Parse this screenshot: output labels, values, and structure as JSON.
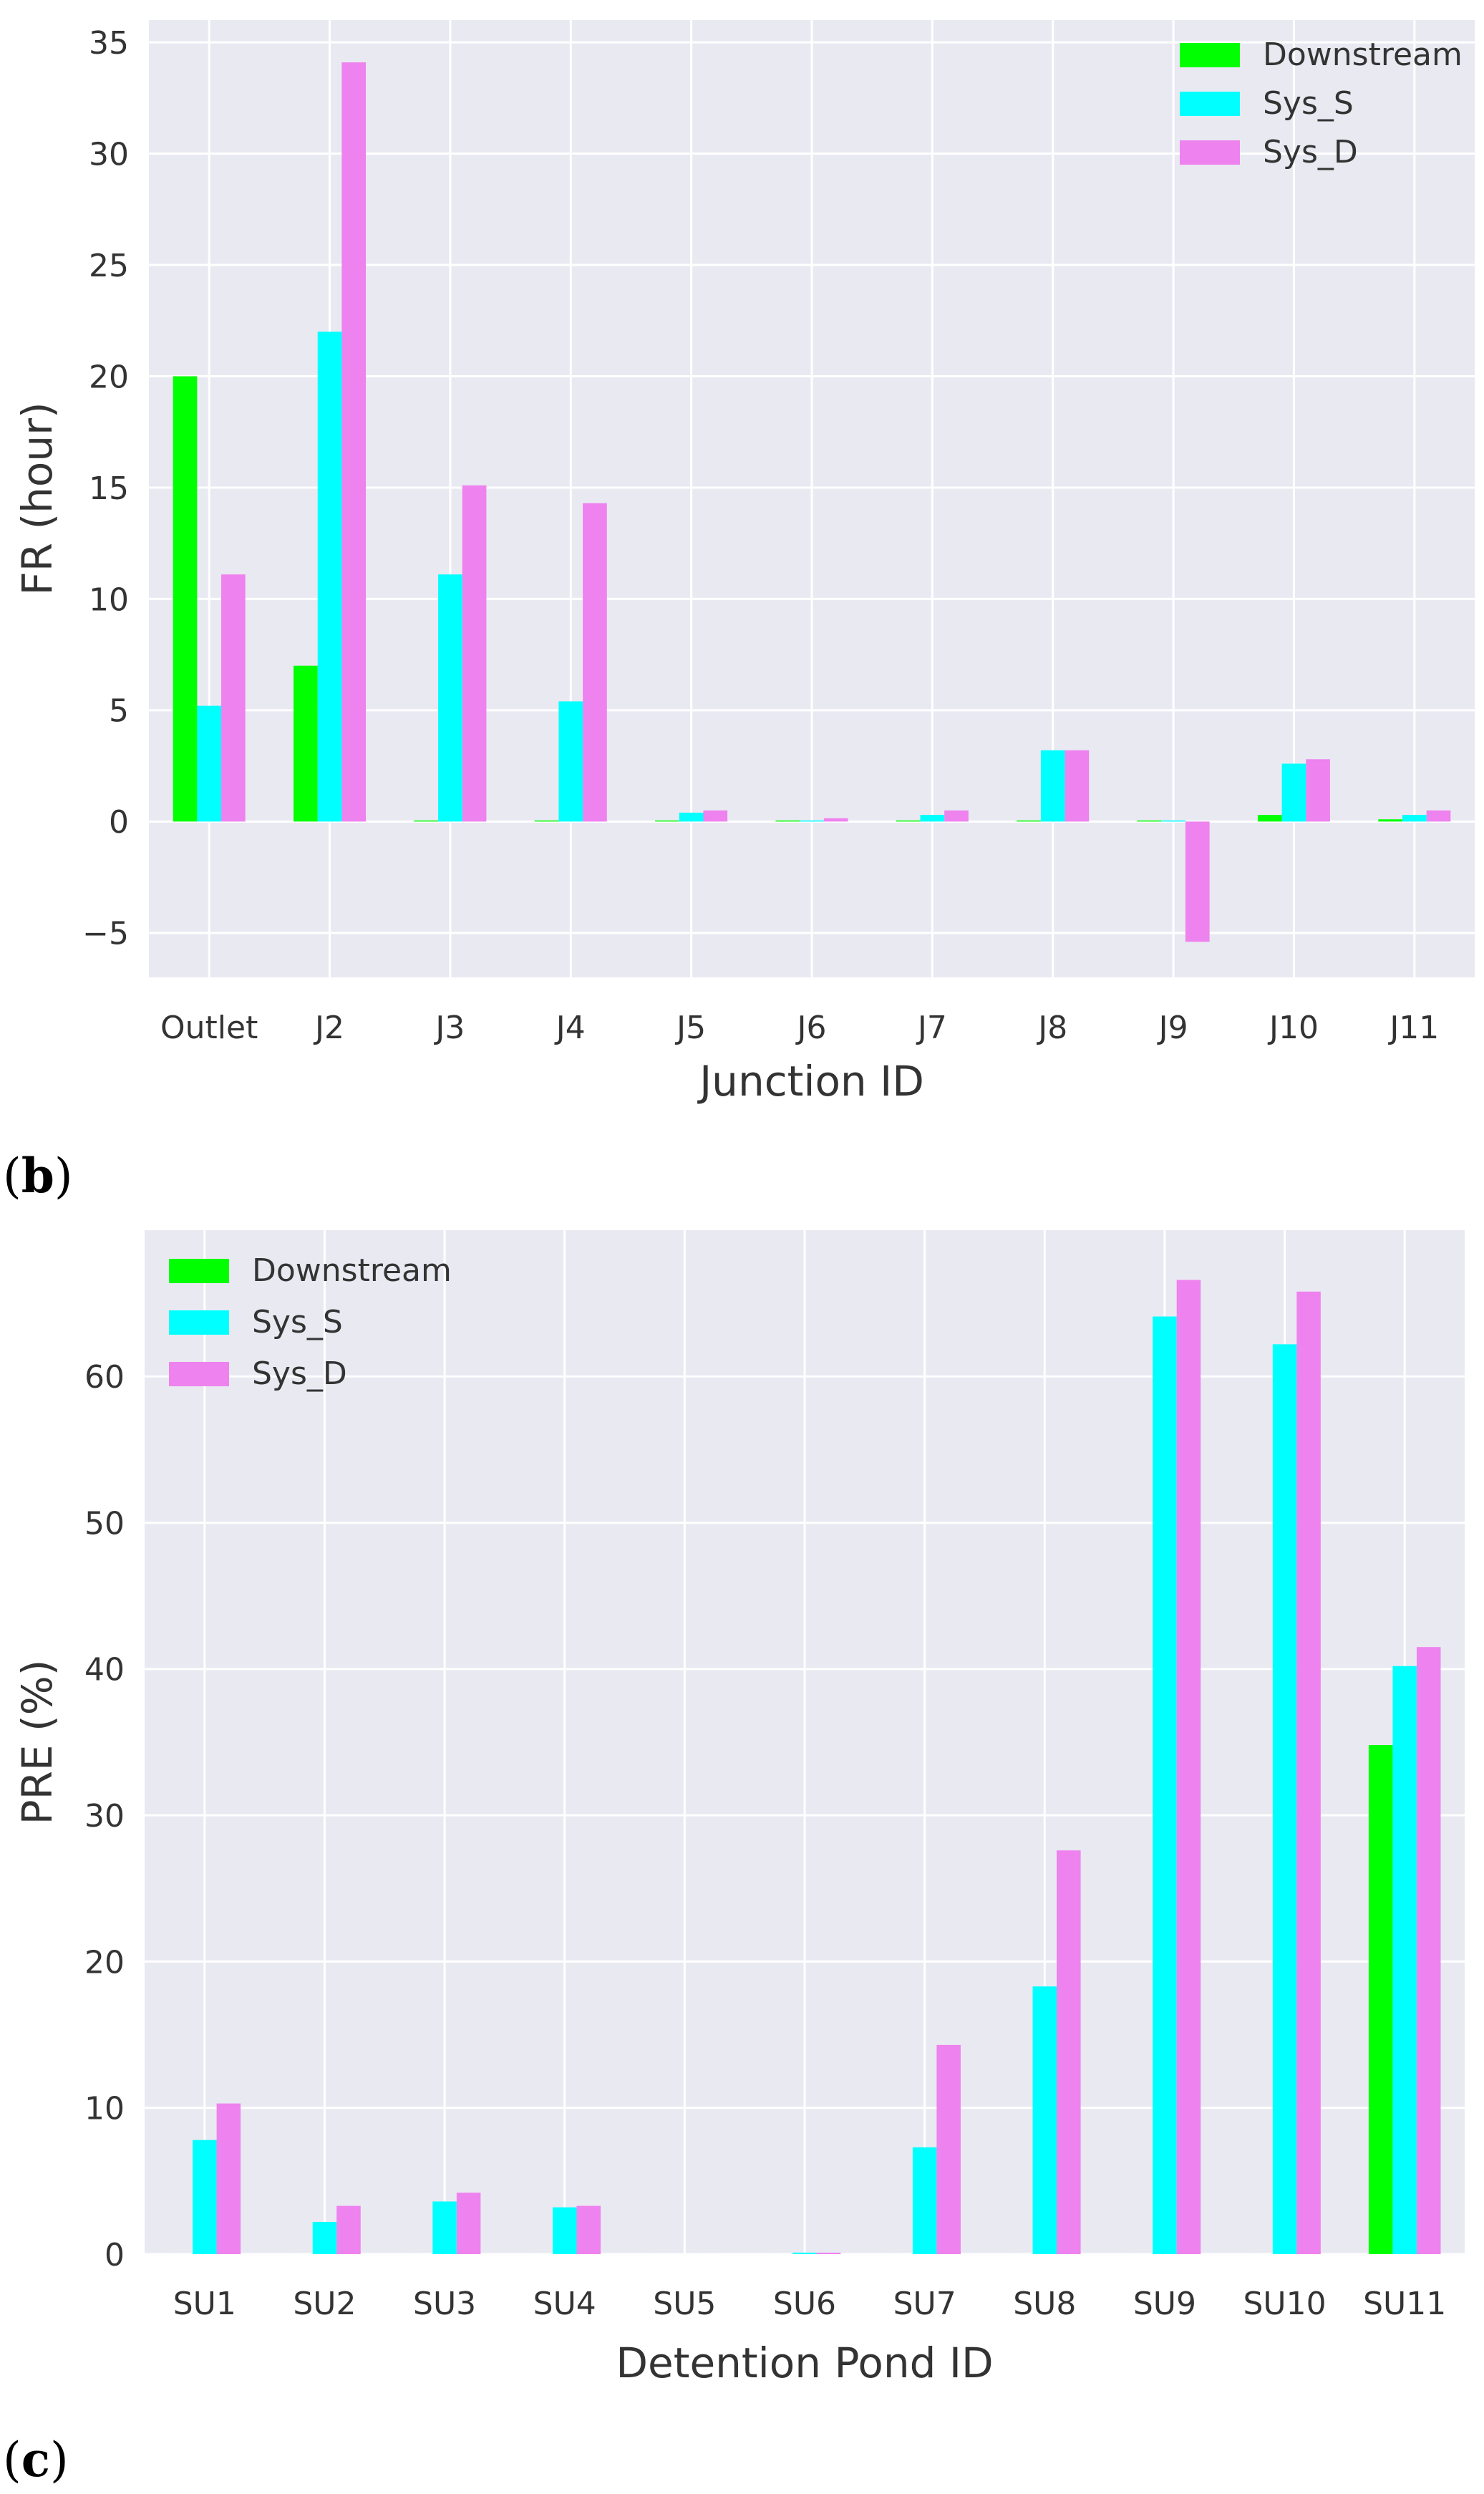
{
  "chart_data": [
    {
      "type": "bar",
      "panel_label": "",
      "title": "",
      "xlabel": "Junction ID",
      "ylabel": "FR (hour)",
      "ylim": [
        -7,
        36
      ],
      "yticks": [
        -5,
        0,
        5,
        10,
        15,
        20,
        25,
        30,
        35
      ],
      "ytick_labels": [
        "−5",
        "0",
        "5",
        "10",
        "15",
        "20",
        "25",
        "30",
        "35"
      ],
      "grid": true,
      "legend_position": "top-right",
      "categories": [
        "Outlet",
        "J2",
        "J3",
        "J4",
        "J5",
        "J6",
        "J7",
        "J8",
        "J9",
        "J10",
        "J11"
      ],
      "series": [
        {
          "name": "Downstream",
          "color": "#00ff00",
          "values": [
            20.0,
            7.0,
            0.05,
            0.05,
            0.05,
            0.05,
            0.05,
            0.05,
            0.05,
            0.3,
            0.1
          ]
        },
        {
          "name": "Sys_S",
          "color": "#00ffff",
          "values": [
            5.2,
            22.0,
            11.1,
            5.4,
            0.4,
            0.05,
            0.3,
            3.2,
            0.05,
            2.6,
            0.3
          ]
        },
        {
          "name": "Sys_D",
          "color": "#ee82ee",
          "values": [
            11.1,
            34.1,
            15.1,
            14.3,
            0.5,
            0.15,
            0.5,
            3.2,
            -5.4,
            2.8,
            0.5
          ]
        }
      ]
    },
    {
      "type": "bar",
      "panel_label": "",
      "title": "",
      "xlabel": "Detention Pond ID",
      "ylabel": "PRE (%)",
      "ylim": [
        0,
        70
      ],
      "yticks": [
        0,
        10,
        20,
        30,
        40,
        50,
        60
      ],
      "ytick_labels": [
        "0",
        "10",
        "20",
        "30",
        "40",
        "50",
        "60"
      ],
      "grid": true,
      "legend_position": "top-left",
      "categories": [
        "SU1",
        "SU2",
        "SU3",
        "SU4",
        "SU5",
        "SU6",
        "SU7",
        "SU8",
        "SU9",
        "SU10",
        "SU11"
      ],
      "series": [
        {
          "name": "Downstream",
          "color": "#00ff00",
          "values": [
            0,
            0,
            0,
            0,
            0,
            0,
            0,
            0,
            0,
            0,
            34.8
          ]
        },
        {
          "name": "Sys_S",
          "color": "#00ffff",
          "values": [
            7.8,
            2.2,
            3.6,
            3.2,
            0,
            0.1,
            7.3,
            18.3,
            64.1,
            62.2,
            40.2
          ]
        },
        {
          "name": "Sys_D",
          "color": "#ee82ee",
          "values": [
            10.3,
            3.3,
            4.2,
            3.3,
            0,
            0.1,
            14.3,
            27.6,
            66.6,
            65.8,
            41.5
          ]
        }
      ]
    }
  ],
  "figure_labels": {
    "b": {
      "open": "(",
      "letter": "b",
      "close": ")"
    },
    "c": {
      "open": "(",
      "letter": "c",
      "close": ")"
    }
  },
  "colors": {
    "plot_background": "#e9e9f2",
    "gridline": "#ffffff",
    "axis_text": "#333333"
  }
}
